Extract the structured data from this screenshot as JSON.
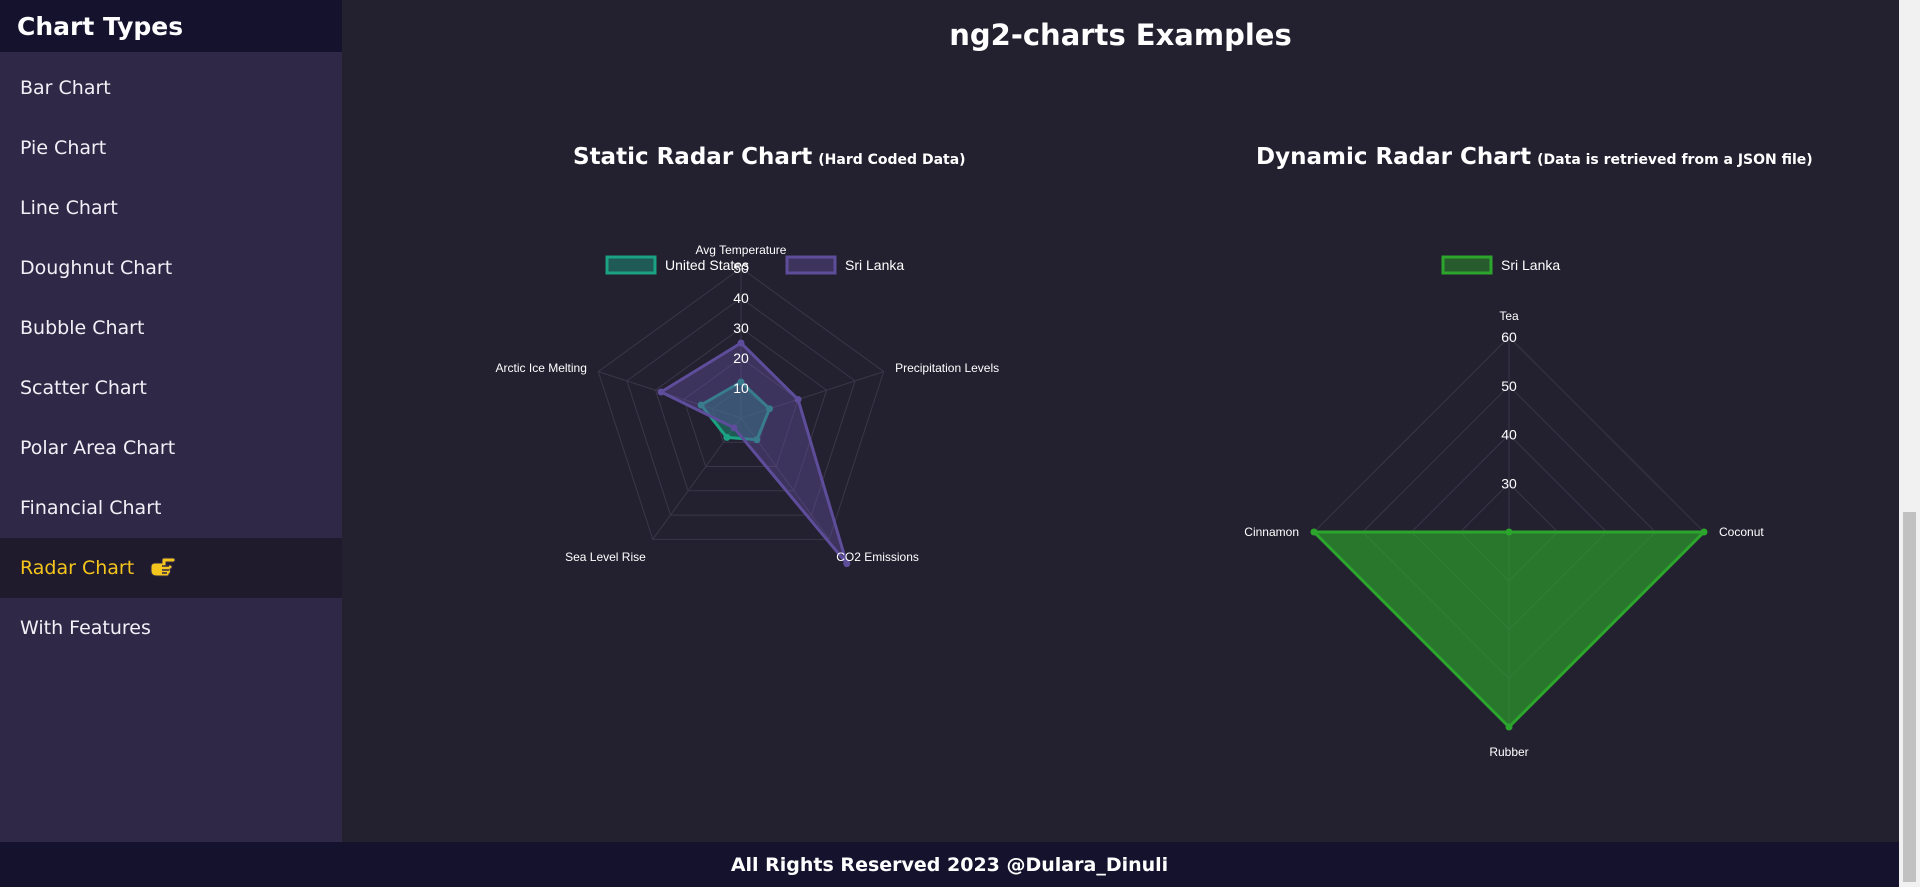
{
  "sidebar": {
    "title": "Chart Types",
    "items": [
      {
        "label": "Bar Chart",
        "name": "bar-chart",
        "active": false
      },
      {
        "label": "Pie Chart",
        "name": "pie-chart",
        "active": false
      },
      {
        "label": "Line Chart",
        "name": "line-chart",
        "active": false
      },
      {
        "label": "Doughnut Chart",
        "name": "doughnut-chart",
        "active": false
      },
      {
        "label": "Bubble Chart",
        "name": "bubble-chart",
        "active": false
      },
      {
        "label": "Scatter Chart",
        "name": "scatter-chart",
        "active": false
      },
      {
        "label": "Polar Area Chart",
        "name": "polar-area-chart",
        "active": false
      },
      {
        "label": "Financial Chart",
        "name": "financial-chart",
        "active": false
      },
      {
        "label": "Radar Chart",
        "name": "radar-chart",
        "active": true,
        "icon": "pointing-hand-icon"
      },
      {
        "label": "With Features",
        "name": "with-features",
        "active": false
      }
    ]
  },
  "main": {
    "title": "ng2-charts Examples",
    "static_heading": "Static Radar Chart",
    "static_subheading": "(Hard Coded Data)",
    "dynamic_heading": "Dynamic Radar Chart",
    "dynamic_subheading": "(Data is retrieved from a JSON file)"
  },
  "footer": {
    "text": "All Rights Reserved 2023 @Dulara_Dinuli"
  },
  "colors": {
    "sidebar_bg": "#2f2947",
    "header_bg": "#15122e",
    "active_text": "#f4c51c",
    "us_series": "#1aa283",
    "sl_series": "#5d4d9a",
    "dynamic_series": "#2ca52c"
  },
  "chart_data": [
    {
      "type": "radar",
      "labels": [
        "Avg Temperature",
        "Precipitation Levels",
        "CO2 Emissions",
        "Sea Level Rise",
        "Arctic Ice Melting"
      ],
      "series": [
        {
          "name": "United States",
          "values": [
            12,
            10,
            9,
            8,
            14
          ],
          "color": "#1aa283"
        },
        {
          "name": "Sri Lanka",
          "values": [
            25,
            20,
            60,
            4,
            28
          ],
          "color": "#5d4d9a"
        }
      ],
      "r_ticks": [
        "10",
        "20",
        "30",
        "40",
        "50"
      ],
      "r_min": 0,
      "r_max": 50,
      "legend": "top"
    },
    {
      "type": "radar",
      "labels": [
        "Tea",
        "Coconut",
        "Rubber",
        "Cinnamon"
      ],
      "series": [
        {
          "name": "Sri Lanka",
          "values": [
            20,
            60,
            60,
            60
          ],
          "color": "#2ca52c"
        }
      ],
      "r_ticks": [
        "30",
        "40",
        "50",
        "60"
      ],
      "r_min": 20,
      "r_max": 60,
      "legend": "top"
    }
  ]
}
